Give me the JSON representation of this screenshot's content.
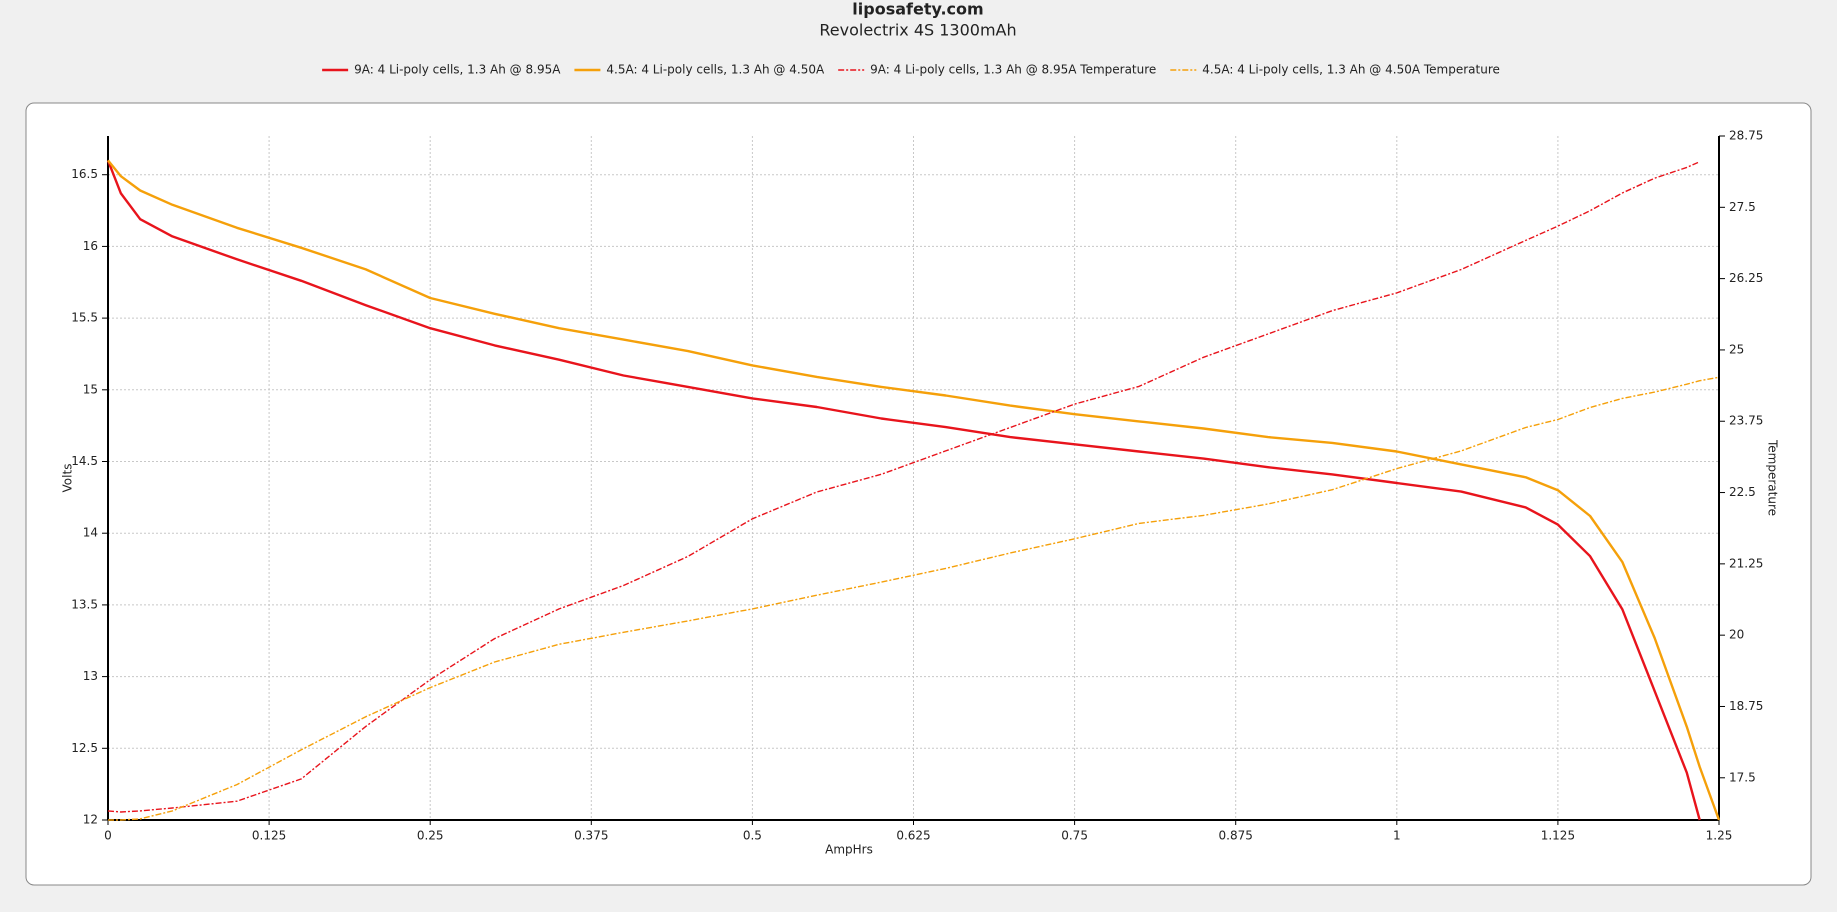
{
  "chart_data": {
    "type": "line",
    "title": "liposafety.com",
    "subtitle": "Revolectrix 4S 1300mAh",
    "x_label": "AmpHrs",
    "y_label": "Volts",
    "y2_label": "Temperature",
    "x": [
      0,
      0.01,
      0.025,
      0.05,
      0.1,
      0.15,
      0.2,
      0.25,
      0.3,
      0.35,
      0.4,
      0.45,
      0.5,
      0.55,
      0.6,
      0.65,
      0.7,
      0.75,
      0.8,
      0.85,
      0.9,
      0.95,
      1.0,
      1.05,
      1.1,
      1.125,
      1.15,
      1.175,
      1.2,
      1.225,
      1.235,
      1.25
    ],
    "series": [
      {
        "name": "9A: 4 Li-poly cells, 1.3 Ah @ 8.95A",
        "color": "#e8141c",
        "style": "solid",
        "values": [
          16.6,
          16.37,
          16.19,
          16.07,
          15.91,
          15.76,
          15.59,
          15.43,
          15.31,
          15.21,
          15.1,
          15.02,
          14.94,
          14.88,
          14.8,
          14.74,
          14.67,
          14.62,
          14.57,
          14.52,
          14.46,
          14.41,
          14.35,
          14.29,
          14.18,
          14.06,
          13.84,
          13.47,
          12.9,
          12.33,
          12.0,
          null
        ]
      },
      {
        "name": "4.5A: 4 Li-poly cells, 1.3 Ah @ 4.50A",
        "color": "#f5a00a",
        "style": "solid",
        "values": [
          16.6,
          16.49,
          16.39,
          16.29,
          16.13,
          15.99,
          15.84,
          15.64,
          15.53,
          15.43,
          15.35,
          15.27,
          15.17,
          15.09,
          15.02,
          14.96,
          14.89,
          14.83,
          14.78,
          14.73,
          14.67,
          14.63,
          14.57,
          14.48,
          14.39,
          14.3,
          14.12,
          13.8,
          13.27,
          12.65,
          12.37,
          12.0
        ]
      },
      {
        "name": "9A: 4 Li-poly cells, 1.3 Ah @ 8.95A Temperature",
        "color": "#e8141c",
        "style": "dashed",
        "axis": "y2",
        "values": [
          16.92,
          16.9,
          16.92,
          16.97,
          17.09,
          17.48,
          18.4,
          19.22,
          19.94,
          20.46,
          20.87,
          21.38,
          22.04,
          22.51,
          22.82,
          23.23,
          23.64,
          24.05,
          24.36,
          24.87,
          25.28,
          25.69,
          26.0,
          26.41,
          26.92,
          27.17,
          27.44,
          27.75,
          28.01,
          28.2,
          28.3,
          null
        ]
      },
      {
        "name": "4.5A: 4 Li-poly cells, 1.3 Ah @ 4.50A Temperature",
        "color": "#f5a00a",
        "style": "dashed",
        "axis": "y2",
        "values": [
          16.76,
          16.76,
          16.78,
          16.92,
          17.38,
          17.99,
          18.57,
          19.08,
          19.53,
          19.84,
          20.05,
          20.25,
          20.46,
          20.7,
          20.93,
          21.17,
          21.44,
          21.69,
          21.96,
          22.1,
          22.3,
          22.55,
          22.92,
          23.23,
          23.64,
          23.78,
          23.99,
          24.15,
          24.26,
          24.4,
          24.46,
          24.52
        ]
      }
    ],
    "xlim": [
      0,
      1.25
    ],
    "xticks": [
      0,
      0.125,
      0.25,
      0.375,
      0.5,
      0.625,
      0.75,
      0.875,
      1,
      1.125,
      1.25
    ],
    "ylim": [
      12,
      16.77
    ],
    "yticks": [
      12,
      12.5,
      13,
      13.5,
      14,
      14.5,
      15,
      15.5,
      16,
      16.5
    ],
    "y2lim": [
      16.76,
      28.75
    ],
    "y2ticks": [
      17.5,
      18.75,
      20,
      21.25,
      22.5,
      23.75,
      25,
      26.25,
      27.5,
      28.75
    ],
    "grid": true,
    "legend": "top"
  }
}
